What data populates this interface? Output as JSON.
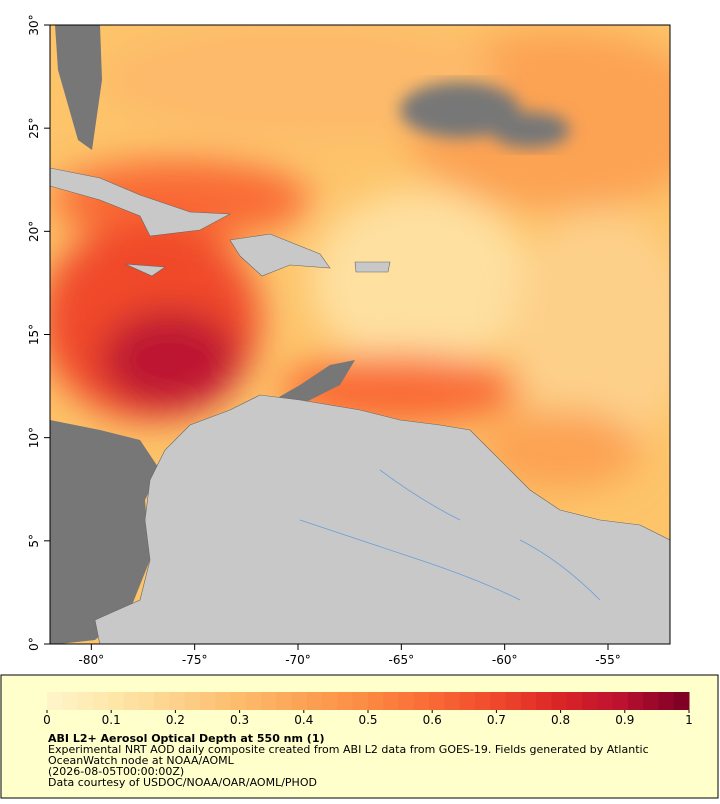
{
  "map": {
    "xlim": [
      -82,
      -52
    ],
    "ylim": [
      0,
      30
    ],
    "xticks": [
      {
        "value": -80,
        "label": "-80°"
      },
      {
        "value": -75,
        "label": "-75°"
      },
      {
        "value": -70,
        "label": "-70°"
      },
      {
        "value": -65,
        "label": "-65°"
      },
      {
        "value": -60,
        "label": "-60°"
      },
      {
        "value": -55,
        "label": "-55°"
      }
    ],
    "yticks": [
      {
        "value": 0,
        "label": "0°"
      },
      {
        "value": 5,
        "label": "5°"
      },
      {
        "value": 10,
        "label": "10°"
      },
      {
        "value": 15,
        "label": "15°"
      },
      {
        "value": 20,
        "label": "20°"
      },
      {
        "value": 25,
        "label": "25°"
      },
      {
        "value": 30,
        "label": "30°"
      }
    ]
  },
  "legend": {
    "title": "ABI L2+ Aerosol Optical Depth at 550 nm (1)",
    "description": [
      "Experimental NRT AOD daily composite created from ABI L2 data from GOES-19. Fields generated by Atlantic",
      "OceanWatch node at NOAA/AOML",
      "(2026-08-05T00:00:00Z)",
      "Data courtesy of USDOC/NOAA/OAR/AOML/PHOD"
    ],
    "colorbar": {
      "lim": [
        0,
        1
      ],
      "ticks": [
        0,
        0.1,
        0.2,
        0.3,
        0.4,
        0.5,
        0.6,
        0.7,
        0.8,
        0.9,
        1
      ],
      "colors": [
        "#fff3c8",
        "#fee6a6",
        "#fdd08a",
        "#fdba6a",
        "#fca253",
        "#fc8a42",
        "#f96a35",
        "#f04a2c",
        "#dc2626",
        "#bd1230",
        "#800026"
      ]
    }
  }
}
